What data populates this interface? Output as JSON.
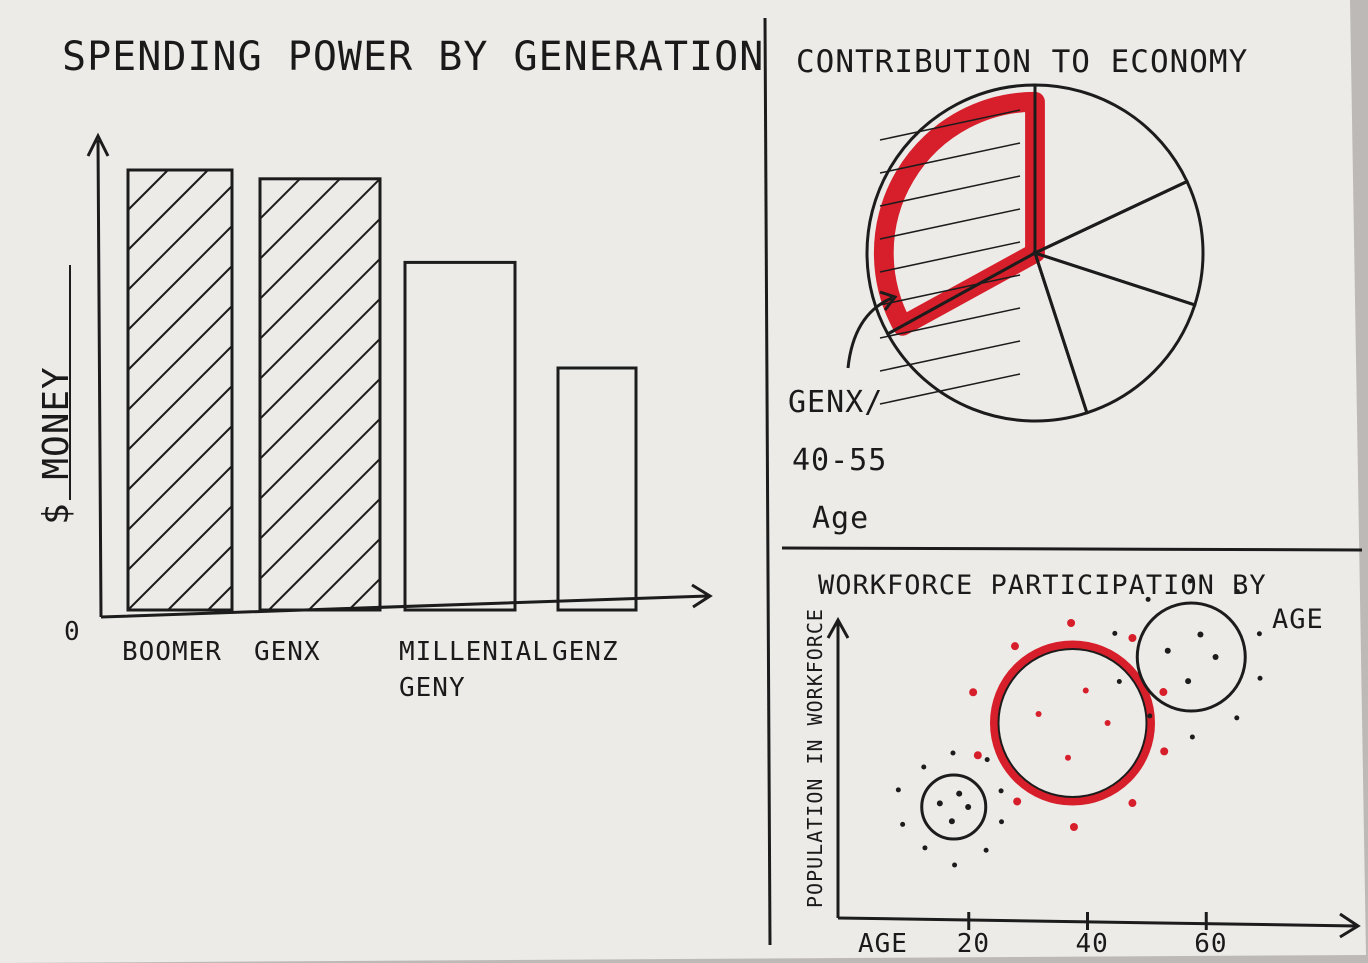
{
  "colors": {
    "ink": "#1c1c1c",
    "accent": "#d71f2b",
    "paper": "#ecebe8"
  },
  "bar_panel": {
    "zero_label": "0",
    "bars": [
      {
        "label_lines": [
          "BOOMER"
        ],
        "hatched": true
      },
      {
        "label_lines": [
          "GENX"
        ],
        "hatched": true
      },
      {
        "label_lines": [
          "MILLENIAL",
          "GENY"
        ],
        "hatched": false
      },
      {
        "label_lines": [
          "GENZ"
        ],
        "hatched": false
      }
    ]
  },
  "pie_panel": {
    "callout_lines": [
      "GENX/",
      "40-55",
      "Age"
    ]
  },
  "bubble_panel": {
    "x_ticks": [
      "20",
      "40",
      "60"
    ]
  },
  "chart_data": [
    {
      "type": "bar",
      "title": "SPENDING POWER BY GENERATION",
      "ylabel": "$ MONEY",
      "xlabel": "",
      "categories": [
        "BOOMER",
        "GENX",
        "MILLENIAL GENY",
        "GENZ"
      ],
      "values": [
        100,
        98,
        79,
        55
      ],
      "ylim": [
        0,
        110
      ],
      "y_ticks": [
        "0"
      ],
      "grid": false,
      "legend": "none"
    },
    {
      "type": "pie",
      "title": "CONTRIBUTION TO ECONOMY",
      "slices": [
        {
          "label": "GENX/ 40-55 Age",
          "value": 33,
          "highlight": true
        },
        {
          "label": "",
          "value": 18,
          "highlight": false
        },
        {
          "label": "",
          "value": 12,
          "highlight": false
        },
        {
          "label": "",
          "value": 15,
          "highlight": false
        },
        {
          "label": "",
          "value": 22,
          "highlight": false
        }
      ]
    },
    {
      "type": "scatter",
      "title": "WORKFORCE PARTICIPATION BY AGE",
      "xlabel": "AGE",
      "ylabel": "POPULATION IN WORKFORCE",
      "x_ticks": [
        "20",
        "40",
        "60"
      ],
      "xlim": [
        0,
        80
      ],
      "ylim": [
        0,
        100
      ],
      "points": [
        {
          "x": 20,
          "y": 22,
          "size": 32,
          "highlight": false
        },
        {
          "x": 40,
          "y": 50,
          "size": 78,
          "highlight": true
        },
        {
          "x": 60,
          "y": 72,
          "size": 54,
          "highlight": false
        }
      ]
    }
  ]
}
